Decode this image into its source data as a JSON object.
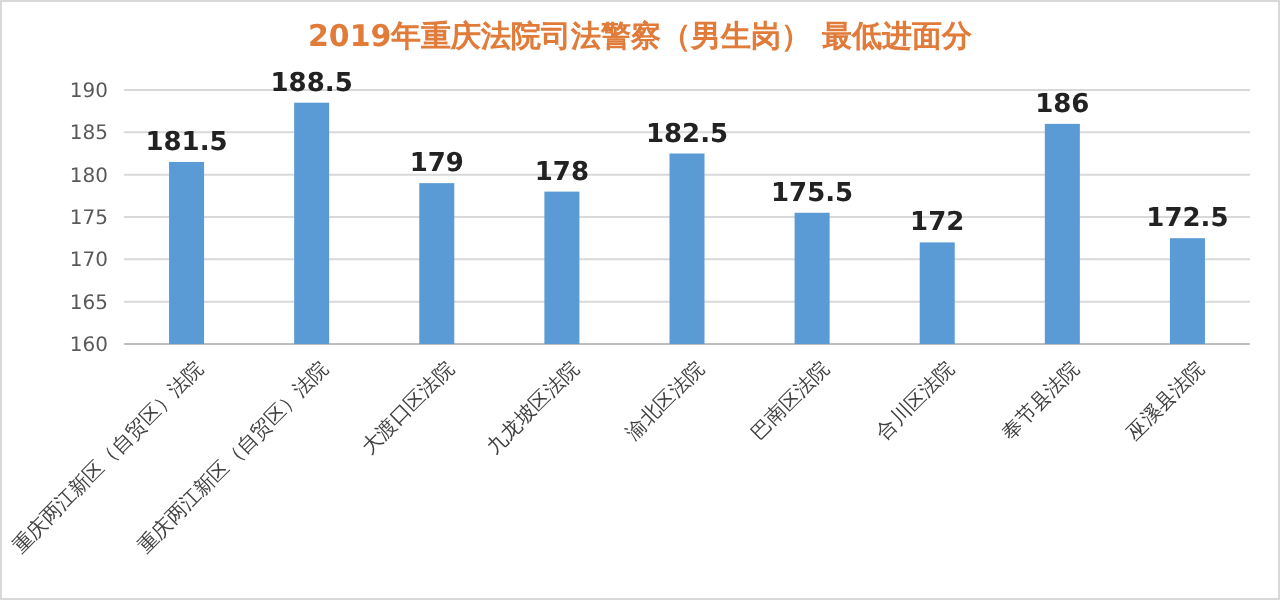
{
  "chart_data": {
    "type": "bar",
    "title": "2019年重庆法院司法警察（男生岗） 最低进面分",
    "categories": [
      "重庆两江新区（自贸区）法院",
      "重庆两江新区（自贸区）法院",
      "大渡口区法院",
      "九龙坡区法院",
      "渝北区法院",
      "巴南区法院",
      "合川区法院",
      "奉节县法院",
      "巫溪县法院"
    ],
    "values": [
      181.5,
      188.5,
      179,
      178,
      182.5,
      175.5,
      172,
      186,
      172.5
    ],
    "color": "#5b9bd5",
    "ylim": [
      160,
      190
    ],
    "yticks": [
      160,
      165,
      170,
      175,
      180,
      185,
      190
    ],
    "grid": "y",
    "data_labels": true
  }
}
